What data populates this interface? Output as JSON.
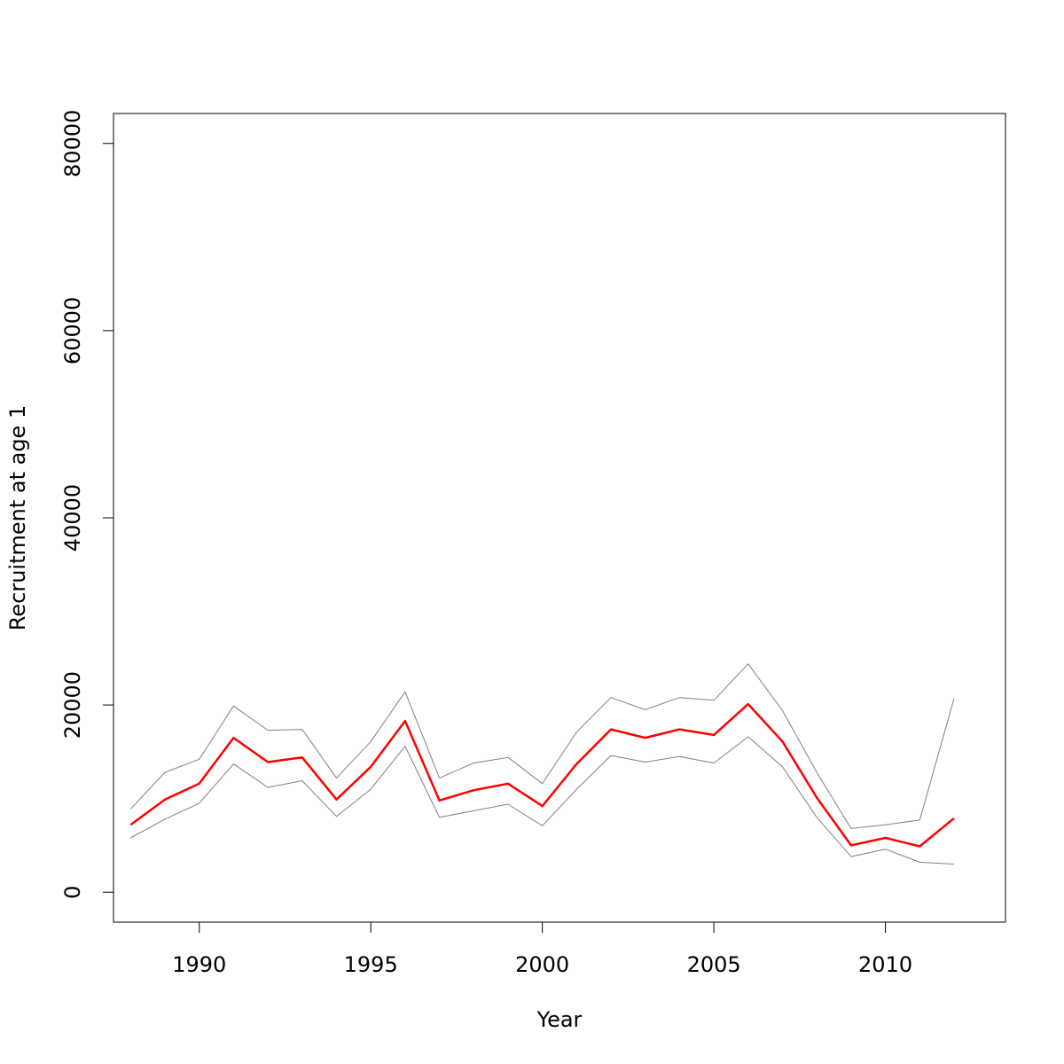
{
  "chart_data": {
    "type": "line",
    "title": "",
    "xlabel": "Year",
    "ylabel": "Recruitment at age 1",
    "xlim": [
      1987.5,
      2013.5
    ],
    "ylim": [
      -3200,
      83200
    ],
    "x_ticks": [
      1990,
      1995,
      2000,
      2005,
      2010
    ],
    "y_ticks": [
      0,
      20000,
      40000,
      60000,
      80000
    ],
    "x_tick_labels": [
      "1990",
      "1995",
      "2000",
      "2005",
      "2010"
    ],
    "y_tick_labels": [
      "0",
      "20000",
      "40000",
      "60000",
      "80000"
    ],
    "grid": false,
    "legend": "none",
    "x": [
      1988,
      1989,
      1990,
      1991,
      1992,
      1993,
      1994,
      1995,
      1996,
      1997,
      1998,
      1999,
      2000,
      2001,
      2002,
      2003,
      2004,
      2005,
      2006,
      2007,
      2008,
      2009,
      2010,
      2011,
      2012
    ],
    "series": [
      {
        "role": "upper",
        "color": "#808080",
        "values": [
          8900,
          12800,
          14200,
          19900,
          17300,
          17400,
          12200,
          16100,
          21400,
          12200,
          13800,
          14400,
          11600,
          17100,
          20800,
          19500,
          20800,
          20500,
          24400,
          19400,
          12800,
          6800,
          7200,
          7700,
          20700
        ]
      },
      {
        "role": "estimate",
        "color": "#ff0000",
        "values": [
          7200,
          9900,
          11600,
          16500,
          13900,
          14400,
          9900,
          13400,
          18300,
          9800,
          10900,
          11600,
          9200,
          13700,
          17400,
          16500,
          17400,
          16800,
          20100,
          16100,
          10100,
          5000,
          5800,
          4900,
          7900
        ]
      },
      {
        "role": "lower",
        "color": "#808080",
        "values": [
          5800,
          7800,
          9500,
          13700,
          11200,
          11900,
          8100,
          11000,
          15600,
          8000,
          8700,
          9400,
          7100,
          11000,
          14600,
          13900,
          14500,
          13800,
          16600,
          13400,
          8000,
          3800,
          4600,
          3200,
          3000
        ]
      }
    ]
  }
}
